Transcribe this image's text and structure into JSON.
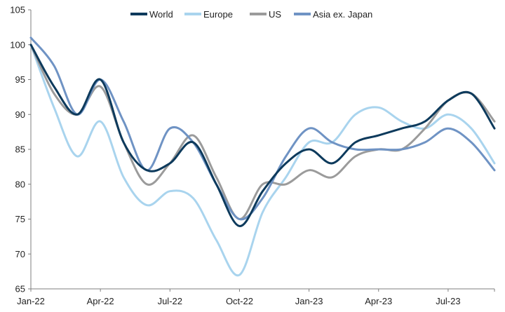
{
  "chart_data": {
    "type": "line",
    "title": "",
    "xlabel": "",
    "ylabel": "",
    "ylim": [
      65,
      105
    ],
    "yticks": [
      65,
      70,
      75,
      80,
      85,
      90,
      95,
      100,
      105
    ],
    "xticks": [
      "Jan-22",
      "Apr-22",
      "Jul-22",
      "Oct-22",
      "Jan-23",
      "Apr-23",
      "Jul-23"
    ],
    "grid": false,
    "legend_position": "top",
    "x": [
      "2022-01",
      "2022-02",
      "2022-03",
      "2022-04",
      "2022-05",
      "2022-06",
      "2022-07",
      "2022-08",
      "2022-09",
      "2022-10",
      "2022-11",
      "2022-12",
      "2023-01",
      "2023-02",
      "2023-03",
      "2023-04",
      "2023-05",
      "2023-06",
      "2023-07",
      "2023-08",
      "2023-09"
    ],
    "series": [
      {
        "name": "World",
        "color": "#0d3a5c",
        "values": [
          100,
          94,
          90,
          95,
          86,
          82,
          83,
          86,
          80,
          74,
          79,
          83,
          85,
          83,
          86,
          87,
          88,
          89,
          92,
          93,
          88
        ]
      },
      {
        "name": "Europe",
        "color": "#a9d4ee",
        "values": [
          100,
          91,
          84,
          89,
          81,
          77,
          79,
          78,
          72,
          67,
          76,
          81,
          86,
          86,
          90,
          91,
          89,
          88,
          90,
          88,
          83
        ]
      },
      {
        "name": "US",
        "color": "#9b9b9b",
        "values": [
          100,
          93,
          90,
          94,
          86,
          80,
          83,
          87,
          81,
          75,
          80,
          80,
          82,
          81,
          84,
          85,
          85,
          88,
          92,
          93,
          89
        ]
      },
      {
        "name": "Asia ex. Japan",
        "color": "#6f93c4",
        "values": [
          101,
          97,
          90,
          95,
          89,
          82,
          88,
          86,
          80,
          75,
          78,
          84,
          88,
          86,
          85,
          85,
          85,
          86,
          88,
          86,
          82
        ]
      }
    ]
  }
}
